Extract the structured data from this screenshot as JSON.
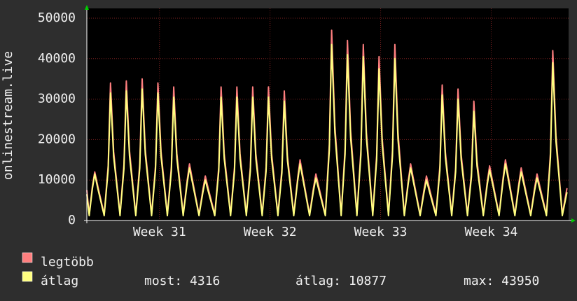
{
  "chart_data": {
    "type": "line",
    "y_label": "onlinestream.live",
    "xlim": [
      0,
      30.5
    ],
    "xticks": [
      {
        "value": 4.6,
        "label": "Week 31"
      },
      {
        "value": 11.6,
        "label": "Week 32"
      },
      {
        "value": 18.6,
        "label": "Week 33"
      },
      {
        "value": 25.6,
        "label": "Week 34"
      }
    ],
    "ylim": [
      0,
      50000
    ],
    "yticks": [
      0,
      10000,
      20000,
      30000,
      40000,
      50000
    ],
    "grid": true,
    "x": [
      0,
      0.15,
      0.35,
      0.5,
      0.7,
      1.1,
      1.35,
      1.5,
      1.7,
      2.1,
      2.35,
      2.5,
      2.7,
      3.1,
      3.35,
      3.5,
      3.7,
      4.1,
      4.35,
      4.5,
      4.7,
      5.1,
      5.35,
      5.5,
      5.7,
      6.1,
      6.35,
      6.5,
      6.7,
      7.1,
      7.35,
      7.5,
      7.7,
      8.1,
      8.35,
      8.5,
      8.7,
      9.1,
      9.35,
      9.5,
      9.7,
      10.1,
      10.35,
      10.5,
      10.7,
      11.1,
      11.35,
      11.5,
      11.7,
      12.1,
      12.35,
      12.5,
      12.7,
      13.1,
      13.35,
      13.5,
      13.7,
      14.1,
      14.35,
      14.5,
      14.7,
      15.1,
      15.35,
      15.5,
      15.7,
      16.1,
      16.35,
      16.5,
      16.7,
      17.1,
      17.35,
      17.5,
      17.7,
      18.1,
      18.35,
      18.5,
      18.7,
      19.1,
      19.35,
      19.5,
      19.7,
      20.1,
      20.35,
      20.5,
      20.7,
      21.1,
      21.35,
      21.5,
      21.7,
      22.1,
      22.35,
      22.5,
      22.7,
      23.1,
      23.35,
      23.5,
      23.7,
      24.1,
      24.35,
      24.5,
      24.7,
      25.1,
      25.35,
      25.5,
      25.7,
      26.1,
      26.35,
      26.5,
      26.7,
      27.1,
      27.35,
      27.5,
      27.7,
      28.1,
      28.35,
      28.5,
      28.7,
      29.1,
      29.35,
      29.5,
      29.7,
      30.1,
      30.4
    ],
    "series": [
      {
        "name": "legtöbb",
        "color": "#ff7f7f",
        "values": [
          7500,
          1500,
          8400,
          12000,
          8400,
          1500,
          13600,
          34000,
          17000,
          1500,
          13800,
          34500,
          17300,
          1500,
          14000,
          35000,
          17500,
          1500,
          13600,
          34000,
          17000,
          1500,
          13200,
          33000,
          16500,
          1500,
          9800,
          14000,
          9800,
          1500,
          7700,
          11000,
          7700,
          1500,
          13200,
          33000,
          16500,
          1500,
          13200,
          33000,
          16500,
          1500,
          13200,
          33000,
          16500,
          1500,
          13200,
          33000,
          16500,
          1500,
          12800,
          32000,
          16000,
          1500,
          10500,
          15000,
          10500,
          1500,
          8100,
          11500,
          8100,
          1500,
          18800,
          47000,
          23500,
          1500,
          17800,
          44500,
          22300,
          1500,
          17400,
          43500,
          21800,
          1500,
          16200,
          40500,
          20300,
          1500,
          17400,
          43500,
          21800,
          1500,
          9800,
          14000,
          9800,
          1500,
          7700,
          11000,
          7700,
          1500,
          13400,
          33500,
          16800,
          1500,
          13000,
          32500,
          16300,
          1500,
          11800,
          29500,
          14800,
          1500,
          9500,
          13500,
          9500,
          1500,
          10500,
          15000,
          10500,
          1500,
          9100,
          13000,
          9100,
          1500,
          8100,
          11500,
          8100,
          1500,
          16800,
          42000,
          21000,
          1500,
          8000
        ]
      },
      {
        "name": "átlag",
        "color": "#ffff80",
        "values": [
          6500,
          1200,
          7800,
          11500,
          7800,
          1200,
          12600,
          31500,
          15800,
          1200,
          12800,
          32000,
          16000,
          1200,
          13000,
          32500,
          16300,
          1200,
          12600,
          31500,
          15800,
          1200,
          12200,
          30500,
          15300,
          1200,
          9100,
          13000,
          9100,
          1200,
          7000,
          10000,
          7000,
          1200,
          12200,
          30500,
          15300,
          1200,
          12200,
          30500,
          15300,
          1200,
          12200,
          30500,
          15300,
          1200,
          12200,
          30500,
          15300,
          1200,
          11800,
          29500,
          14800,
          1200,
          9800,
          14000,
          9800,
          1200,
          7400,
          10500,
          7400,
          1200,
          17400,
          43500,
          21800,
          1200,
          16400,
          41000,
          20500,
          1200,
          16200,
          40500,
          20300,
          1200,
          15000,
          37500,
          18800,
          1200,
          16000,
          40000,
          20000,
          1200,
          9100,
          13000,
          9100,
          1200,
          7000,
          10000,
          7000,
          1200,
          12400,
          31000,
          15500,
          1200,
          12000,
          30000,
          15000,
          1200,
          10800,
          27000,
          13500,
          1200,
          8800,
          12500,
          8800,
          1200,
          9800,
          14000,
          9800,
          1200,
          8400,
          12000,
          8400,
          1200,
          7400,
          10500,
          7400,
          1200,
          15600,
          39000,
          19500,
          1200,
          7000
        ]
      }
    ],
    "stats": [
      "most: 4316",
      "átlag: 10877",
      "max: 43950"
    ]
  }
}
